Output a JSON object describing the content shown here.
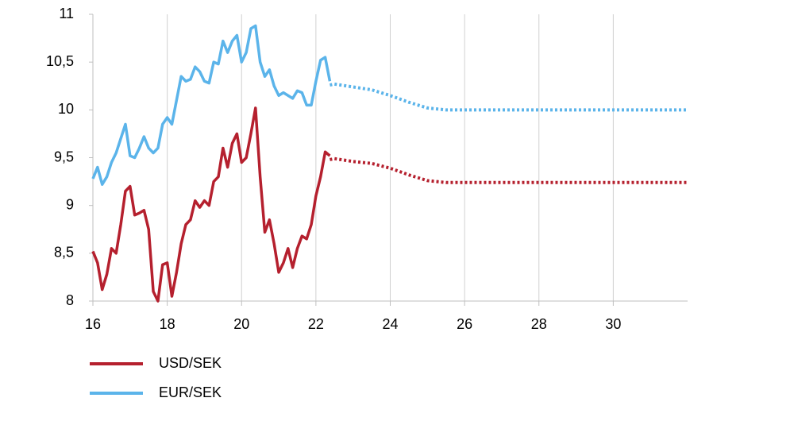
{
  "chart_data": {
    "type": "line",
    "x": [
      16,
      16.125,
      16.25,
      16.375,
      16.5,
      16.625,
      16.75,
      16.875,
      17,
      17.125,
      17.25,
      17.375,
      17.5,
      17.625,
      17.75,
      17.875,
      18,
      18.125,
      18.25,
      18.375,
      18.5,
      18.625,
      18.75,
      18.875,
      19,
      19.125,
      19.25,
      19.375,
      19.5,
      19.625,
      19.75,
      19.875,
      20,
      20.125,
      20.25,
      20.375,
      20.5,
      20.625,
      20.75,
      20.875,
      21,
      21.125,
      21.25,
      21.375,
      21.5,
      21.625,
      21.75,
      21.875,
      22,
      22.125,
      22.25,
      22.375
    ],
    "forecast_x": [
      22.375,
      22.5,
      23,
      23.5,
      24,
      24.5,
      25,
      25.5,
      26,
      27,
      28,
      29,
      30,
      31,
      32
    ],
    "series": [
      {
        "name": "USD/SEK",
        "color": "#b5202e",
        "values": [
          8.52,
          8.4,
          8.12,
          8.28,
          8.55,
          8.5,
          8.8,
          9.15,
          9.2,
          8.9,
          8.92,
          8.95,
          8.75,
          8.1,
          8.0,
          8.38,
          8.4,
          8.05,
          8.3,
          8.6,
          8.8,
          8.85,
          9.05,
          8.98,
          9.05,
          9.0,
          9.25,
          9.3,
          9.6,
          9.4,
          9.65,
          9.75,
          9.45,
          9.5,
          9.75,
          10.02,
          9.3,
          8.72,
          8.85,
          8.6,
          8.3,
          8.4,
          8.55,
          8.35,
          8.55,
          8.68,
          8.65,
          8.8,
          9.1,
          9.3,
          9.56,
          9.52
        ],
        "forecast_values": [
          9.48,
          9.49,
          9.46,
          9.44,
          9.39,
          9.32,
          9.26,
          9.24,
          9.24,
          9.24,
          9.24,
          9.24,
          9.24,
          9.24,
          9.24
        ]
      },
      {
        "name": "EUR/SEK",
        "color": "#5bb4ea",
        "values": [
          9.28,
          9.4,
          9.22,
          9.3,
          9.45,
          9.55,
          9.7,
          9.85,
          9.52,
          9.5,
          9.6,
          9.72,
          9.6,
          9.55,
          9.6,
          9.85,
          9.92,
          9.85,
          10.1,
          10.35,
          10.3,
          10.32,
          10.45,
          10.4,
          10.3,
          10.28,
          10.5,
          10.48,
          10.72,
          10.6,
          10.72,
          10.78,
          10.5,
          10.6,
          10.85,
          10.88,
          10.5,
          10.35,
          10.42,
          10.25,
          10.15,
          10.18,
          10.15,
          10.12,
          10.2,
          10.18,
          10.05,
          10.05,
          10.3,
          10.52,
          10.55,
          10.3
        ],
        "forecast_values": [
          10.26,
          10.27,
          10.24,
          10.21,
          10.15,
          10.08,
          10.02,
          10.0,
          10.0,
          10.0,
          10.0,
          10.0,
          10.0,
          10.0,
          10.0
        ]
      }
    ],
    "xlim": [
      16,
      32
    ],
    "xticks": [
      16,
      18,
      20,
      22,
      24,
      26,
      28,
      30
    ],
    "ylim": [
      8,
      11
    ],
    "yticks": [
      8,
      {
        "value": 8.5,
        "label": "8,5"
      },
      9,
      {
        "value": 9.5,
        "label": "9,5"
      },
      10,
      {
        "value": 10.5,
        "label": "10,5"
      },
      11
    ],
    "grid": "x",
    "legend": "bottom-left"
  }
}
